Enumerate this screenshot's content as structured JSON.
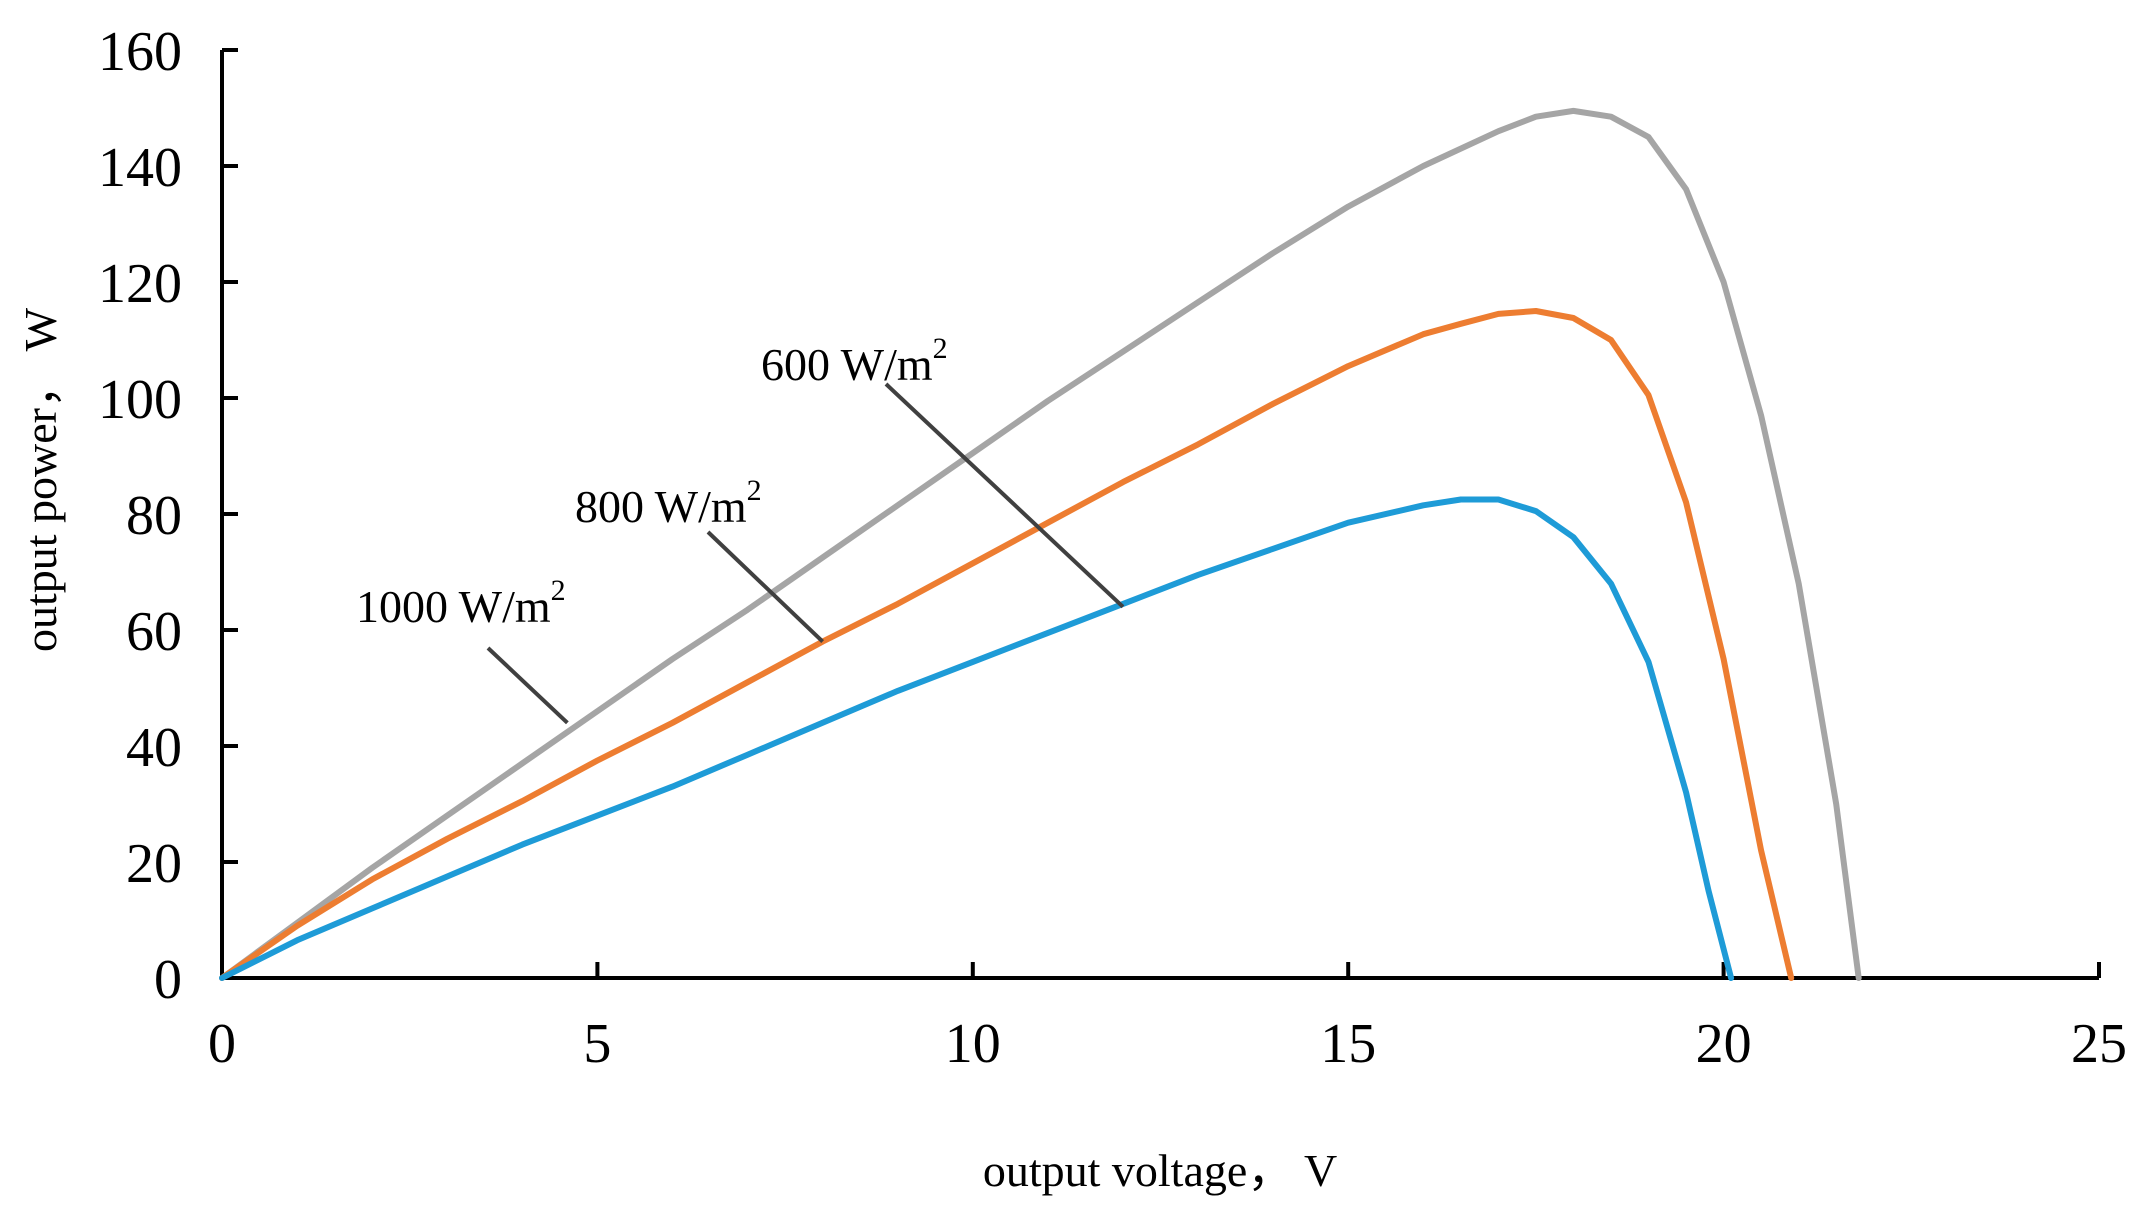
{
  "chart_data": {
    "type": "line",
    "title": "",
    "xlabel": "output voltage， V",
    "ylabel": "output power， W",
    "xlim": [
      0,
      25
    ],
    "ylim": [
      0,
      160
    ],
    "xticks": [
      0,
      5,
      10,
      15,
      20,
      25
    ],
    "yticks": [
      0,
      20,
      40,
      60,
      80,
      100,
      120,
      140,
      160
    ],
    "grid": false,
    "legend": "none",
    "series": [
      {
        "name": "1000 W/m2",
        "color": "#A5A5A5",
        "x": [
          0,
          1,
          2,
          3,
          4,
          5,
          6,
          7,
          8,
          9,
          10,
          11,
          12,
          13,
          14,
          15,
          16,
          17,
          17.5,
          18,
          18.5,
          19,
          19.5,
          20,
          20.5,
          21,
          21.5,
          21.8
        ],
        "y": [
          0,
          9.5,
          19,
          28,
          37,
          46,
          55,
          63.5,
          72.5,
          81.5,
          90.5,
          99.5,
          108,
          116.5,
          125,
          133,
          140,
          146,
          148.5,
          149.5,
          148.5,
          145,
          136,
          120,
          97,
          68,
          30,
          0
        ]
      },
      {
        "name": "800 W/m2",
        "color": "#ED7D31",
        "x": [
          0,
          1,
          2,
          3,
          4,
          5,
          6,
          7,
          8,
          9,
          10,
          11,
          12,
          13,
          14,
          15,
          16,
          16.5,
          17,
          17.5,
          18,
          18.5,
          19,
          19.5,
          20,
          20.5,
          20.9
        ],
        "y": [
          0,
          9,
          17,
          24,
          30.5,
          37.5,
          44,
          51,
          58,
          64.5,
          71.5,
          78.5,
          85.5,
          92,
          99,
          105.5,
          111,
          112.8,
          114.5,
          115,
          113.8,
          110,
          100.5,
          82,
          55,
          22,
          0
        ]
      },
      {
        "name": "600 W/m2",
        "color": "#1E9BD7",
        "x": [
          0,
          1,
          2,
          3,
          4,
          5,
          6,
          7,
          8,
          9,
          10,
          11,
          12,
          13,
          14,
          15,
          16,
          16.5,
          17,
          17.5,
          18,
          18.5,
          19,
          19.5,
          19.8,
          20.1
        ],
        "y": [
          0,
          6.5,
          12,
          17.5,
          23,
          28,
          33,
          38.5,
          44,
          49.5,
          54.5,
          59.5,
          64.5,
          69.5,
          74,
          78.5,
          81.5,
          82.5,
          82.5,
          80.5,
          76,
          68,
          54.5,
          32,
          15,
          0
        ]
      }
    ],
    "annotations": [
      {
        "base": "1000 W/m",
        "sup": "2",
        "series": "1000 W/m2",
        "point": [
          4.6,
          44
        ]
      },
      {
        "base": "800 W/m",
        "sup": "2",
        "series": "800 W/m2",
        "point": [
          8.0,
          58
        ]
      },
      {
        "base": "600 W/m",
        "sup": "2",
        "series": "600 W/m2",
        "point": [
          12.0,
          64
        ]
      }
    ]
  }
}
